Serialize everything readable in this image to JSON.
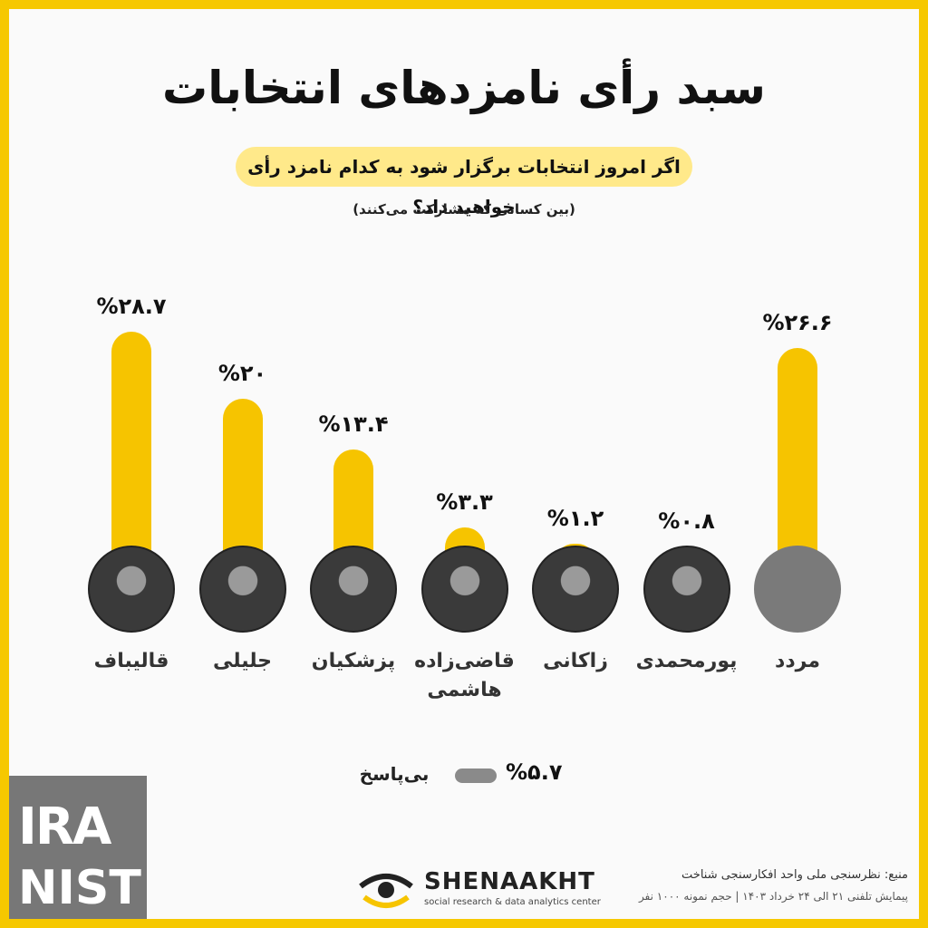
{
  "chart_data": {
    "type": "bar",
    "title": "سبد رأی نامزدهای انتخابات",
    "subtitle": "اگر امروز انتخابات برگزار شود به کدام نامزد رأی خواهید داد؟",
    "note": "(بین کسانی که مشارکت می‌کنند)",
    "categories": [
      "قالیباف",
      "جلیلی",
      "پزشکیان",
      "قاضی‌زاده هاشمی",
      "زاکانی",
      "پورمحمدی",
      "مردد"
    ],
    "values": [
      28.7,
      20,
      13.4,
      3.3,
      1.2,
      0.8,
      26.6
    ],
    "value_labels": [
      "%۲۸.۷",
      "%۲۰",
      "%۱۳.۴",
      "%۳.۳",
      "%۱.۲",
      "%۰.۸",
      "%۲۶.۶"
    ],
    "color": "#f6c400",
    "no_answer": {
      "label": "بی‌پاسخ",
      "value": 5.7,
      "value_label": "%۵.۷"
    }
  },
  "footer": {
    "brand": "SHENAAKHT",
    "brand_subtitle": "social research & data analytics center",
    "source": "منبع: نظرسنجی ملی واحد افکارسنجی شناخت",
    "method": "پیمایش تلفنی ۲۱ الی ۲۴ خرداد ۱۴۰۳ | حجم نمونه ۱۰۰۰ نفر"
  },
  "watermark": {
    "top": "IRA",
    "bottom": "NIST"
  }
}
